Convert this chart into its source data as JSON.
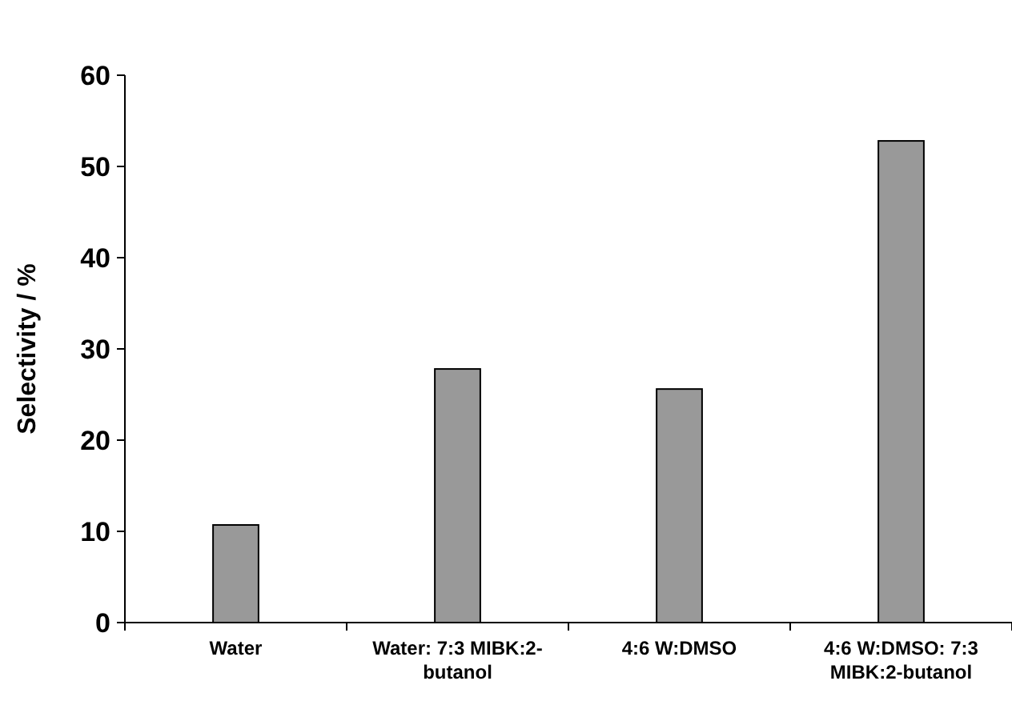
{
  "chart_data": {
    "type": "bar",
    "ylabel": "Selectivity / %",
    "categories": [
      "Water",
      "Water: 7:3 MIBK:2-butanol",
      "4:6 W:DMSO",
      "4:6 W:DMSO: 7:3 MIBK:2-butanol"
    ],
    "values": [
      10.7,
      27.8,
      25.6,
      52.8
    ],
    "color": "#999999",
    "ylim": [
      0,
      60
    ],
    "yticks": [
      0,
      10,
      20,
      30,
      40,
      50,
      60
    ],
    "grid": false
  }
}
